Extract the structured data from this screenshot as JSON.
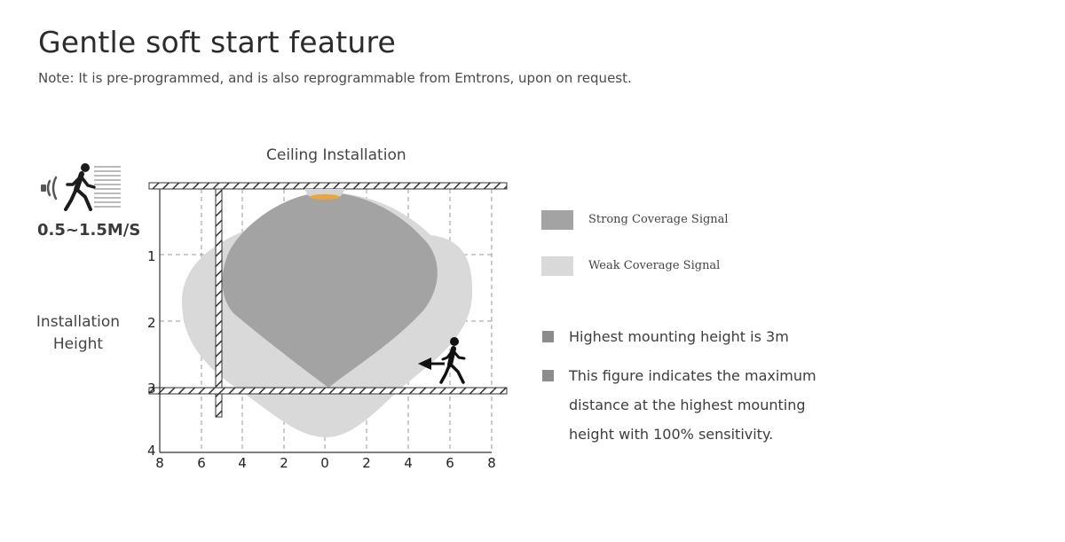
{
  "header": {
    "title": "Gentle soft start feature",
    "note": "Note: It is pre-programmed, and is also reprogrammable from Emtrons, upon on request."
  },
  "speed": {
    "label": "0.5~1.5M/S"
  },
  "installation_height": {
    "line1": "Installation",
    "line2": "Height"
  },
  "diagram": {
    "title": "Ceiling Installation",
    "y_ticks": [
      "1",
      "2",
      "3",
      "4"
    ],
    "x_ticks": [
      "8",
      "6",
      "4",
      "2",
      "0",
      "2",
      "4",
      "6",
      "8"
    ]
  },
  "legend": [
    {
      "label": "Strong Coverage Signal",
      "color": "#a3a3a3"
    },
    {
      "label": "Weak Coverage Signal",
      "color": "#d9d9d9"
    }
  ],
  "bullets": [
    {
      "lines": [
        "Highest mounting height is 3m"
      ]
    },
    {
      "lines": [
        "This figure indicates the maximum",
        "distance at the highest mounting",
        "height with 100% sensitivity."
      ]
    }
  ],
  "icons": {
    "speed": "walking-person-with-sensor-waves-icon",
    "walker": "walking-person-icon",
    "arrow": "left-arrow-icon",
    "sensor": "ceiling-sensor-icon",
    "bullet": "square-bullet-icon"
  },
  "colors": {
    "strong": "#a3a3a3",
    "weak": "#d9d9d9",
    "sensor": "#e8a63d",
    "grid": "#9a9a9a"
  }
}
